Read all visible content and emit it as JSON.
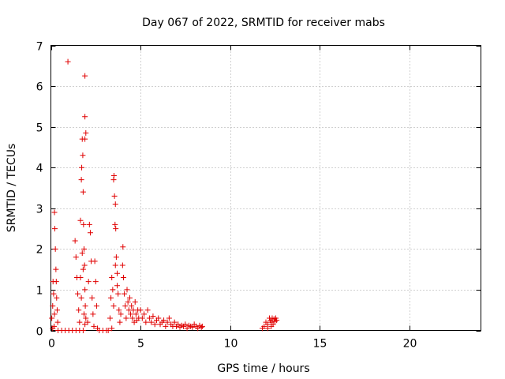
{
  "chart_data": {
    "type": "scatter",
    "title": "Day 067 of 2022, SRMTID for receiver mabs",
    "xlabel": "GPS time / hours",
    "ylabel": "SRMTID / TECUs",
    "xlim": [
      0,
      24
    ],
    "ylim": [
      0,
      7
    ],
    "xticks": [
      0,
      5,
      10,
      15,
      20
    ],
    "yticks": [
      0,
      1,
      2,
      3,
      4,
      5,
      6,
      7
    ],
    "xtick_labels": [
      "0",
      "5",
      "10",
      "15",
      "20"
    ],
    "ytick_labels": [
      "0",
      "1",
      "2",
      "3",
      "4",
      "5",
      "6",
      "7"
    ],
    "grid": true,
    "marker": "+",
    "colors": {
      "series": "#e00000",
      "grid": "#a0a0a0",
      "axis": "#000000"
    },
    "series": [
      {
        "name": "SRMTID",
        "points": [
          [
            0.05,
            0.3
          ],
          [
            0.1,
            0.6
          ],
          [
            0.12,
            1.2
          ],
          [
            0.15,
            0.9
          ],
          [
            0.18,
            0.1
          ],
          [
            0.2,
            2.9
          ],
          [
            0.22,
            2.5
          ],
          [
            0.25,
            2.0
          ],
          [
            0.28,
            1.5
          ],
          [
            0.3,
            1.2
          ],
          [
            0.32,
            0.8
          ],
          [
            0.35,
            0.5
          ],
          [
            0.38,
            0.2
          ],
          [
            0.1,
            0.05
          ],
          [
            0.2,
            0.4
          ],
          [
            0.4,
            0.0
          ],
          [
            0.6,
            0.0
          ],
          [
            0.8,
            0.0
          ],
          [
            1.0,
            0.0
          ],
          [
            1.2,
            0.0
          ],
          [
            1.4,
            0.0
          ],
          [
            1.6,
            0.0
          ],
          [
            1.8,
            0.0
          ],
          [
            0.95,
            6.6
          ],
          [
            1.35,
            2.2
          ],
          [
            1.4,
            1.8
          ],
          [
            1.45,
            1.3
          ],
          [
            1.5,
            0.9
          ],
          [
            1.55,
            0.5
          ],
          [
            1.6,
            0.2
          ],
          [
            1.65,
            2.7
          ],
          [
            1.7,
            3.7
          ],
          [
            1.72,
            4.0
          ],
          [
            1.75,
            4.7
          ],
          [
            1.78,
            4.3
          ],
          [
            1.8,
            3.4
          ],
          [
            1.82,
            2.6
          ],
          [
            1.85,
            2.0
          ],
          [
            1.88,
            1.6
          ],
          [
            1.9,
            1.0
          ],
          [
            1.92,
            0.6
          ],
          [
            1.95,
            0.3
          ],
          [
            1.65,
            1.3
          ],
          [
            1.7,
            0.8
          ],
          [
            1.75,
            1.9
          ],
          [
            1.8,
            1.5
          ],
          [
            1.85,
            0.4
          ],
          [
            1.9,
            0.15
          ],
          [
            1.9,
            6.25
          ],
          [
            1.9,
            5.25
          ],
          [
            1.95,
            4.85
          ],
          [
            1.9,
            4.7
          ],
          [
            2.05,
            0.2
          ],
          [
            2.1,
            1.2
          ],
          [
            2.15,
            2.6
          ],
          [
            2.2,
            2.4
          ],
          [
            2.25,
            1.7
          ],
          [
            2.3,
            0.8
          ],
          [
            2.35,
            0.4
          ],
          [
            2.4,
            0.1
          ],
          [
            2.45,
            1.7
          ],
          [
            2.5,
            1.2
          ],
          [
            2.55,
            0.6
          ],
          [
            2.6,
            0.05
          ],
          [
            2.7,
            0.0
          ],
          [
            2.9,
            0.0
          ],
          [
            3.1,
            0.0
          ],
          [
            3.2,
            0.0
          ],
          [
            3.3,
            0.3
          ],
          [
            3.35,
            0.8
          ],
          [
            3.4,
            1.3
          ],
          [
            3.45,
            1.0
          ],
          [
            3.5,
            3.7
          ],
          [
            3.52,
            3.8
          ],
          [
            3.55,
            3.3
          ],
          [
            3.58,
            2.6
          ],
          [
            3.6,
            3.1
          ],
          [
            3.62,
            2.5
          ],
          [
            3.65,
            1.8
          ],
          [
            3.7,
            1.4
          ],
          [
            3.75,
            0.9
          ],
          [
            3.8,
            0.5
          ],
          [
            3.85,
            0.2
          ],
          [
            3.4,
            0.05
          ],
          [
            3.5,
            0.6
          ],
          [
            3.6,
            1.6
          ],
          [
            3.7,
            1.1
          ],
          [
            3.9,
            0.4
          ],
          [
            4.0,
            1.6
          ],
          [
            4.02,
            2.05
          ],
          [
            4.05,
            1.3
          ],
          [
            4.1,
            0.9
          ],
          [
            4.15,
            0.6
          ],
          [
            4.2,
            0.3
          ],
          [
            4.25,
            1.0
          ],
          [
            4.3,
            0.7
          ],
          [
            4.35,
            0.5
          ],
          [
            4.4,
            0.8
          ],
          [
            4.45,
            0.4
          ],
          [
            4.5,
            0.6
          ],
          [
            4.55,
            0.3
          ],
          [
            4.6,
            0.5
          ],
          [
            4.65,
            0.2
          ],
          [
            4.7,
            0.7
          ],
          [
            4.75,
            0.4
          ],
          [
            4.8,
            0.25
          ],
          [
            4.85,
            0.5
          ],
          [
            4.9,
            0.3
          ],
          [
            5.0,
            0.5
          ],
          [
            5.1,
            0.3
          ],
          [
            5.2,
            0.4
          ],
          [
            5.3,
            0.2
          ],
          [
            5.4,
            0.5
          ],
          [
            5.5,
            0.3
          ],
          [
            5.6,
            0.2
          ],
          [
            5.7,
            0.35
          ],
          [
            5.8,
            0.15
          ],
          [
            5.9,
            0.25
          ],
          [
            6.0,
            0.3
          ],
          [
            6.1,
            0.15
          ],
          [
            6.2,
            0.2
          ],
          [
            6.3,
            0.25
          ],
          [
            6.4,
            0.1
          ],
          [
            6.5,
            0.2
          ],
          [
            6.6,
            0.3
          ],
          [
            6.7,
            0.15
          ],
          [
            6.8,
            0.1
          ],
          [
            6.9,
            0.2
          ],
          [
            7.0,
            0.1
          ],
          [
            7.1,
            0.15
          ],
          [
            7.2,
            0.08
          ],
          [
            7.3,
            0.12
          ],
          [
            7.4,
            0.1
          ],
          [
            7.5,
            0.15
          ],
          [
            7.6,
            0.05
          ],
          [
            7.7,
            0.12
          ],
          [
            7.8,
            0.1
          ],
          [
            7.9,
            0.08
          ],
          [
            8.0,
            0.15
          ],
          [
            8.1,
            0.1
          ],
          [
            8.2,
            0.05
          ],
          [
            8.3,
            0.12
          ],
          [
            8.4,
            0.08
          ],
          [
            8.45,
            0.1
          ],
          [
            11.8,
            0.05
          ],
          [
            11.9,
            0.1
          ],
          [
            12.0,
            0.2
          ],
          [
            12.1,
            0.15
          ],
          [
            12.2,
            0.3
          ],
          [
            12.25,
            0.25
          ],
          [
            12.3,
            0.2
          ],
          [
            12.35,
            0.3
          ],
          [
            12.4,
            0.15
          ],
          [
            12.45,
            0.28
          ],
          [
            12.5,
            0.22
          ],
          [
            12.55,
            0.3
          ],
          [
            12.6,
            0.25
          ],
          [
            12.1,
            0.05
          ],
          [
            12.3,
            0.1
          ]
        ]
      }
    ]
  }
}
